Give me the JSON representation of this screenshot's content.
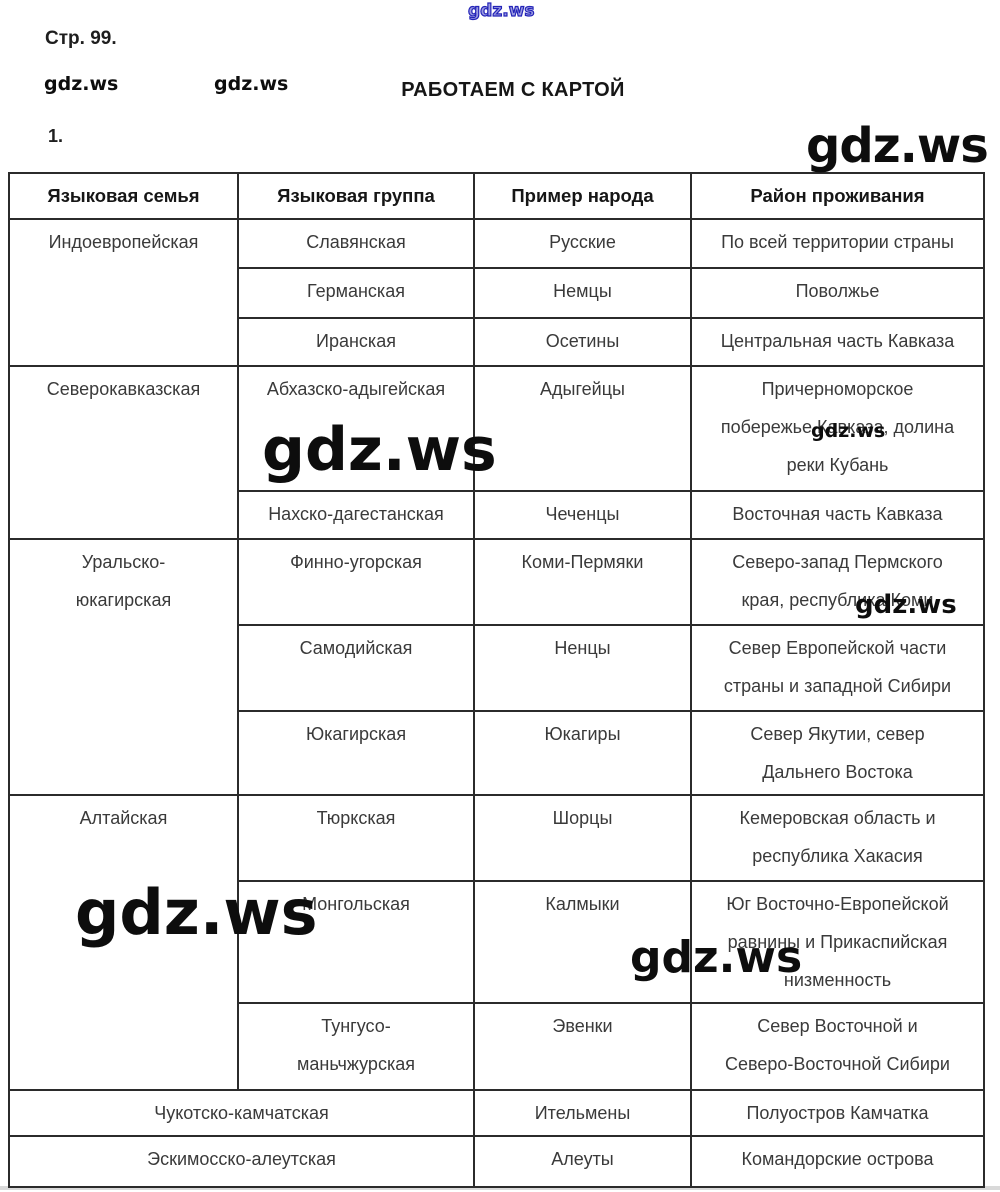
{
  "page": {
    "page_label": "Стр. 99.",
    "title": "РАБОТАЕМ С КАРТОЙ",
    "item_number": "1."
  },
  "watermarks": {
    "brand": "gdz.ws",
    "blue_color": "#2424b8",
    "black_color": "#0d0d0d"
  },
  "table": {
    "columns": [
      "Языковая семья",
      "Языковая группа",
      "Пример народа",
      "Район проживания"
    ],
    "rows": [
      {
        "family": "Индоевропейская",
        "group": "Славянская",
        "people": "Русские",
        "region": "По всей территории страны"
      },
      {
        "group": "Германская",
        "people": "Немцы",
        "region": "Поволжье"
      },
      {
        "group": "Иранская",
        "people": "Осетины",
        "region": "Центральная часть Кавказа"
      },
      {
        "family": "Северокавказская",
        "group": "Абхазско-адыгейская",
        "people": "Адыгейцы",
        "region": "Причерноморское\nпобережье Кавказа, долина\nреки Кубань"
      },
      {
        "group": "Нахско-дагестанская",
        "people": "Чеченцы",
        "region": "Восточная часть Кавказа"
      },
      {
        "family": "Уральско-\nюкагирская",
        "group": "Финно-угорская",
        "people": "Коми-Пермяки",
        "region": "Северо-запад Пермского\nкрая, республика Коми"
      },
      {
        "group": "Самодийская",
        "people": "Ненцы",
        "region": "Север Европейской части\nстраны и западной Сибири"
      },
      {
        "group": "Юкагирская",
        "people": "Юкагиры",
        "region": "Север Якутии, север\nДальнего Востока"
      },
      {
        "family": "Алтайская",
        "group": "Тюркская",
        "people": "Шорцы",
        "region": "Кемеровская область и\nреспублика Хакасия"
      },
      {
        "group": "Монгольская",
        "people": "Калмыки",
        "region": "Юг Восточно-Европейской\nравнины и Прикаспийская\nнизменность"
      },
      {
        "group": "Тунгусо-\nманьчжурская",
        "people": "Эвенки",
        "region": "Север Восточной и\nСеверо-Восточной Сибири"
      },
      {
        "family_group": "Чукотско-камчатская",
        "people": "Ительмены",
        "region": "Полуостров Камчатка"
      },
      {
        "family_group": "Эскимосско-алеутская",
        "people": "Алеуты",
        "region": "Командорские острова"
      }
    ]
  }
}
